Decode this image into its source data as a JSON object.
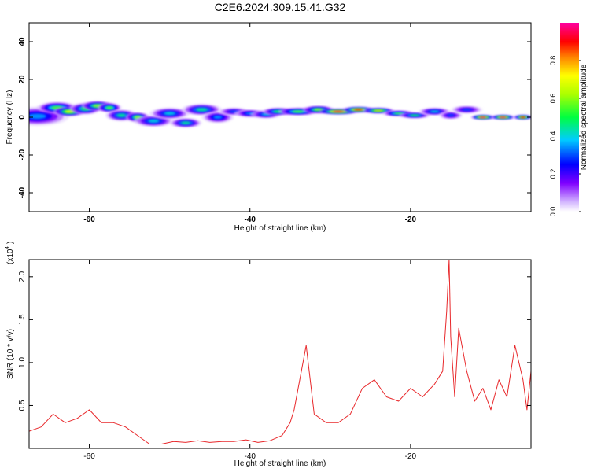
{
  "title": "C2E6.2024.309.15.41.G32",
  "chart_data": [
    {
      "type": "heatmap",
      "xlabel": "Height of straight line (km)",
      "ylabel": "Frequency (Hz)",
      "xlim": [
        -67.5,
        -5
      ],
      "ylim": [
        -50,
        50
      ],
      "xticks": [
        -60,
        -40,
        -20
      ],
      "yticks": [
        -40,
        -20,
        0,
        20,
        40
      ],
      "colorbar": {
        "label": "Normalized spectral amplitude",
        "range": [
          0,
          1
        ],
        "ticks": [
          0.0,
          0.2,
          0.4,
          0.6,
          0.8
        ]
      },
      "blobs": [
        [
          -66.5,
          0.5,
          4,
          5,
          0.35
        ],
        [
          -64.0,
          5.0,
          2.5,
          3,
          0.55
        ],
        [
          -62.5,
          3.0,
          2,
          2.5,
          0.7
        ],
        [
          -60.5,
          4.5,
          2,
          3,
          0.5
        ],
        [
          -59.0,
          6.0,
          2,
          2.5,
          0.6
        ],
        [
          -57.5,
          5.0,
          1.5,
          2.5,
          0.55
        ],
        [
          -56.0,
          1.0,
          2,
          3,
          0.45
        ],
        [
          -54.0,
          0.0,
          1.5,
          2.5,
          0.6
        ],
        [
          -52.0,
          -2.0,
          2.5,
          3,
          0.4
        ],
        [
          -50.0,
          2.0,
          2.5,
          3,
          0.4
        ],
        [
          -48.0,
          -3.0,
          2,
          2.5,
          0.45
        ],
        [
          -46.0,
          4.0,
          2.5,
          3,
          0.45
        ],
        [
          -44.0,
          0.0,
          2,
          3,
          0.35
        ],
        [
          -42.0,
          3.0,
          2,
          2,
          0.3
        ],
        [
          -40.0,
          2.0,
          2,
          2,
          0.35
        ],
        [
          -38.0,
          1.5,
          2,
          2,
          0.4
        ],
        [
          -36.5,
          3.0,
          2,
          2,
          0.5
        ],
        [
          -34.0,
          3.0,
          2.5,
          2,
          0.55
        ],
        [
          -31.5,
          4.0,
          2,
          2,
          0.6
        ],
        [
          -29.0,
          3.0,
          2.5,
          1.5,
          0.95
        ],
        [
          -26.5,
          4.0,
          2,
          1.5,
          0.9
        ],
        [
          -24.0,
          3.5,
          2,
          1.5,
          0.75
        ],
        [
          -21.5,
          2.0,
          2,
          1.5,
          0.55
        ],
        [
          -19.5,
          1.0,
          2,
          1.5,
          0.5
        ],
        [
          -17.0,
          3.0,
          2,
          2,
          0.4
        ],
        [
          -15.0,
          1.0,
          1.5,
          2,
          0.3
        ],
        [
          -13.0,
          4.0,
          2,
          2,
          0.3
        ],
        [
          -11.0,
          0.0,
          1.5,
          1.2,
          0.97
        ],
        [
          -8.5,
          0.0,
          1.5,
          1.2,
          0.97
        ],
        [
          -6.0,
          0.0,
          1.2,
          1.2,
          0.9
        ]
      ]
    },
    {
      "type": "line",
      "xlabel": "Height of straight line (km)",
      "ylabel": "SNR (10 * v/v)",
      "yscale_label": "(x10",
      "yscale_exponent": "4",
      "xlim": [
        -67.5,
        -5
      ],
      "ylim": [
        0,
        2.2
      ],
      "xticks": [
        -60,
        -40,
        -20
      ],
      "yticks": [
        0.5,
        1.0,
        1.5,
        2.0
      ],
      "ytick_labels": [
        "0.5",
        "1.0",
        "1.5",
        "2.0"
      ],
      "line_color": "#e8282b",
      "series": [
        {
          "x": [
            -67.5,
            -66,
            -64.5,
            -63,
            -61.5,
            -60,
            -58.5,
            -57,
            -55.5,
            -54,
            -52.5,
            -51,
            -49.5,
            -48,
            -46.5,
            -45,
            -43.5,
            -42,
            -40.5,
            -39,
            -37.5,
            -36,
            -35,
            -34.5,
            -34,
            -33.5,
            -33,
            -32,
            -30.5,
            -29,
            -27.5,
            -26,
            -24.5,
            -23,
            -21.5,
            -20,
            -18.5,
            -17,
            -16,
            -15.5,
            -15.2,
            -15,
            -14.5,
            -14,
            -13,
            -12,
            -11,
            -10,
            -9,
            -8,
            -7,
            -6,
            -5.5,
            -5
          ],
          "y": [
            0.2,
            0.25,
            0.4,
            0.3,
            0.35,
            0.45,
            0.3,
            0.3,
            0.25,
            0.15,
            0.05,
            0.05,
            0.08,
            0.07,
            0.09,
            0.07,
            0.08,
            0.08,
            0.1,
            0.07,
            0.09,
            0.15,
            0.3,
            0.45,
            0.7,
            0.95,
            1.2,
            0.4,
            0.3,
            0.3,
            0.4,
            0.7,
            0.8,
            0.6,
            0.55,
            0.7,
            0.6,
            0.75,
            0.9,
            1.6,
            2.2,
            1.3,
            0.6,
            1.4,
            0.9,
            0.55,
            0.7,
            0.45,
            0.8,
            0.6,
            1.2,
            0.8,
            0.45,
            0.9
          ]
        }
      ]
    }
  ]
}
